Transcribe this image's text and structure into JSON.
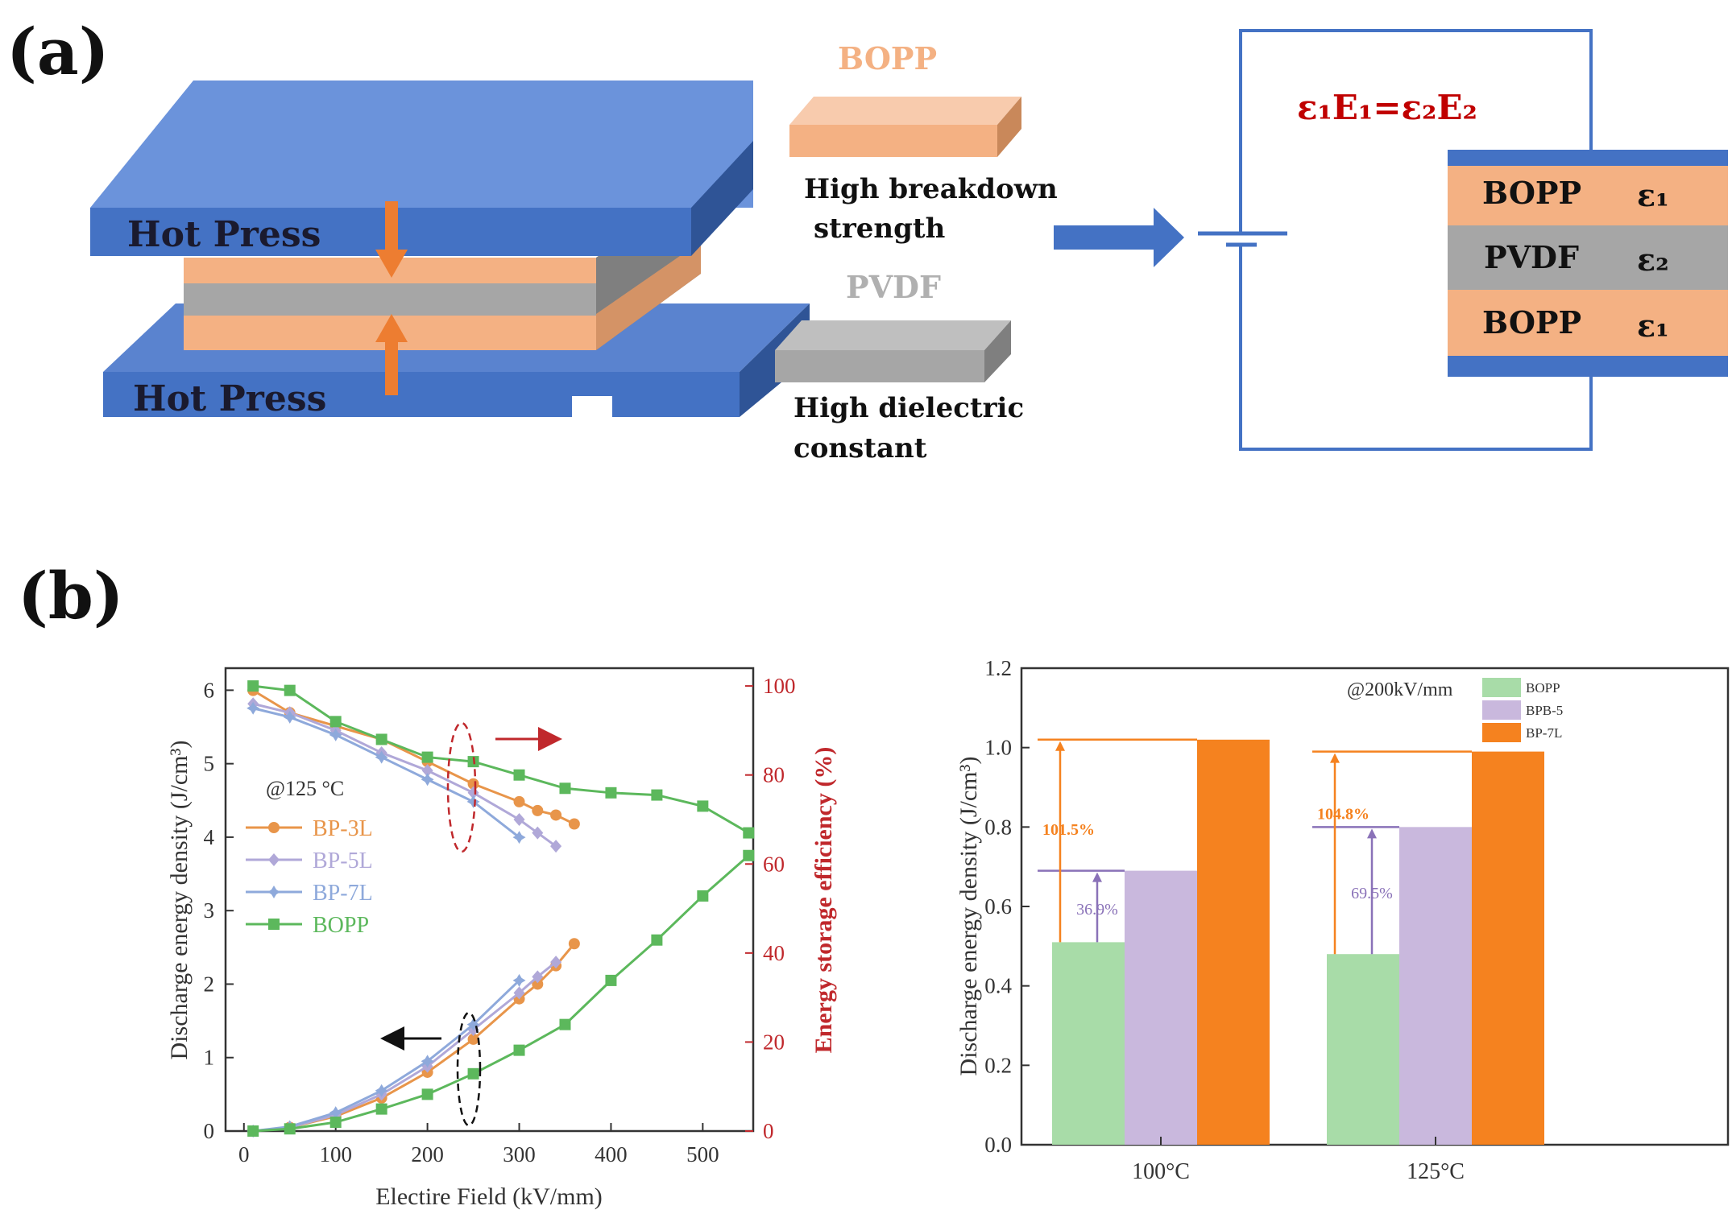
{
  "panel_a": {
    "label": "(a)",
    "hot_press_top": "Hot Press",
    "hot_press_bottom": "Hot Press",
    "bopp_title": "BOPP",
    "bopp_desc_1": "High breakdown",
    "bopp_desc_2": "strength",
    "pvdf_title": "PVDF",
    "pvdf_desc_1": "High dielectric",
    "pvdf_desc_2": "constant",
    "equation": "ε₁E₁=ε₂E₂",
    "layers": [
      {
        "name": "BOPP",
        "eps": "ε₁",
        "color": "#f4b183"
      },
      {
        "name": "PVDF",
        "eps": "ε₂",
        "color": "#a6a6a6"
      },
      {
        "name": "BOPP",
        "eps": "ε₁",
        "color": "#f4b183"
      }
    ],
    "colors": {
      "press": "#4472c4",
      "press_top": "#6b93db",
      "bopp": "#f4b183",
      "pvdf": "#a6a6a6",
      "arrow": "#ed7d31",
      "equation": "#c00000"
    }
  },
  "panel_b": {
    "label": "(b)"
  },
  "chart_data": [
    {
      "type": "line",
      "title": "",
      "annotation": "@125 °C",
      "xlabel": "Electire Field (kV/mm)",
      "ylabel": "Discharge energy density (J/cm³)",
      "y2label": "Energy storage efficiency (%)",
      "xlim": [
        -20,
        555
      ],
      "ylim": [
        0,
        6.3
      ],
      "y2lim": [
        0,
        104
      ],
      "xticks": [
        "0",
        "100",
        "200",
        "300",
        "400",
        "500"
      ],
      "yticks": [
        "0",
        "1",
        "2",
        "3",
        "4",
        "5",
        "6"
      ],
      "y2ticks": [
        "0",
        "20",
        "40",
        "60",
        "80",
        "100"
      ],
      "series": [
        {
          "name": "BP-3L",
          "color": "#e8954a",
          "marker": "circle",
          "x": [
            10,
            50,
            100,
            150,
            200,
            250,
            300,
            320,
            340,
            360
          ],
          "energy": [
            0.0,
            0.05,
            0.2,
            0.45,
            0.8,
            1.25,
            1.8,
            2.0,
            2.25,
            2.55
          ],
          "efficiency": [
            99,
            94,
            91,
            88,
            83,
            78,
            74,
            72,
            71,
            69
          ]
        },
        {
          "name": "BP-5L",
          "color": "#b0a8d8",
          "marker": "diamond",
          "x": [
            10,
            50,
            100,
            150,
            200,
            250,
            300,
            320,
            340
          ],
          "energy": [
            0.0,
            0.05,
            0.22,
            0.5,
            0.88,
            1.38,
            1.88,
            2.1,
            2.3
          ],
          "efficiency": [
            96,
            94,
            90,
            85,
            81,
            76,
            70,
            67,
            64
          ]
        },
        {
          "name": "BP-7L",
          "color": "#8ea9db",
          "marker": "star",
          "x": [
            10,
            50,
            100,
            150,
            200,
            250,
            300
          ],
          "energy": [
            0.0,
            0.06,
            0.25,
            0.55,
            0.95,
            1.45,
            2.05
          ],
          "efficiency": [
            95,
            93,
            89,
            84,
            79,
            74,
            66
          ]
        },
        {
          "name": "BOPP",
          "color": "#5cb85c",
          "marker": "square",
          "x": [
            10,
            50,
            100,
            150,
            200,
            250,
            300,
            350,
            400,
            450,
            500,
            550
          ],
          "energy": [
            0.0,
            0.03,
            0.12,
            0.3,
            0.5,
            0.78,
            1.1,
            1.45,
            2.05,
            2.6,
            3.2,
            3.75
          ],
          "efficiency": [
            100,
            99,
            92,
            88,
            84,
            83,
            80,
            77,
            76,
            75.5,
            73,
            67
          ]
        }
      ]
    },
    {
      "type": "bar",
      "title": "",
      "annotation": "@200kV/mm",
      "xlabel": "",
      "ylabel": "Discharge energy density (J/cm³)",
      "categories": [
        "100°C",
        "125°C"
      ],
      "ylim": [
        0,
        1.2
      ],
      "yticks": [
        "0.0",
        "0.2",
        "0.4",
        "0.6",
        "0.8",
        "1.0",
        "1.2"
      ],
      "series": [
        {
          "name": "BOPP",
          "color": "#a8dca8",
          "values": [
            0.51,
            0.48
          ]
        },
        {
          "name": "BPB-5",
          "color": "#c9b8dd",
          "values": [
            0.69,
            0.8
          ]
        },
        {
          "name": "BP-7L",
          "color": "#f5821f",
          "values": [
            1.02,
            0.99
          ]
        }
      ],
      "increase_labels": [
        {
          "category": "100°C",
          "vs": "BPB-5",
          "text": "36.9%"
        },
        {
          "category": "100°C",
          "vs": "BP-7L",
          "text": "101.5%"
        },
        {
          "category": "125°C",
          "vs": "BPB-5",
          "text": "69.5%"
        },
        {
          "category": "125°C",
          "vs": "BP-7L",
          "text": "104.8%"
        }
      ]
    }
  ]
}
